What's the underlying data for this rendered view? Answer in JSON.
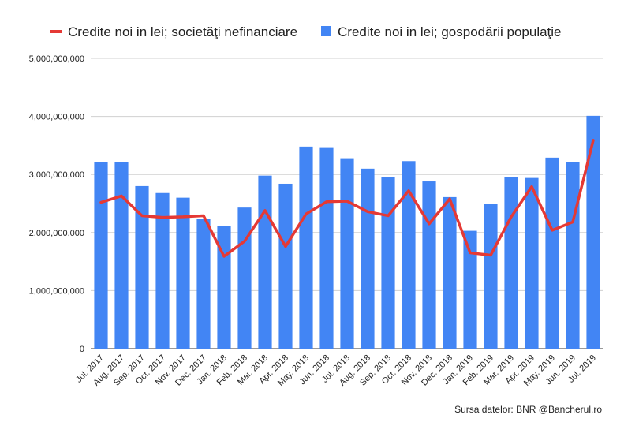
{
  "chart_data": {
    "type": "bar",
    "categories": [
      "Jul. 2017",
      "Aug. 2017",
      "Sep. 2017",
      "Oct. 2017",
      "Nov. 2017",
      "Dec. 2017",
      "Jan. 2018",
      "Feb. 2018",
      "Mar. 2018",
      "Apr. 2018",
      "May. 2018",
      "Jun. 2018",
      "Jul. 2018",
      "Aug. 2018",
      "Sep. 2018",
      "Oct. 2018",
      "Nov. 2018",
      "Dec. 2018",
      "Jan. 2019",
      "Feb. 2019",
      "Mar. 2019",
      "Apr. 2019",
      "May. 2019",
      "Jun. 2019",
      "Jul. 2019"
    ],
    "series": [
      {
        "name": "Credite noi in lei; gospodării populaţie",
        "kind": "bar",
        "color": "#4285f4",
        "values": [
          3210000000,
          3220000000,
          2800000000,
          2680000000,
          2600000000,
          2240000000,
          2110000000,
          2430000000,
          2980000000,
          2840000000,
          3480000000,
          3470000000,
          3280000000,
          3100000000,
          2960000000,
          3230000000,
          2880000000,
          2610000000,
          2030000000,
          2500000000,
          2960000000,
          2940000000,
          3290000000,
          3210000000,
          4010000000
        ]
      },
      {
        "name": "Credite noi in lei; societăţi nefinanciare",
        "kind": "line",
        "color": "#e53935",
        "values": [
          2520000000,
          2630000000,
          2290000000,
          2260000000,
          2270000000,
          2290000000,
          1590000000,
          1850000000,
          2380000000,
          1760000000,
          2320000000,
          2530000000,
          2540000000,
          2360000000,
          2290000000,
          2720000000,
          2150000000,
          2580000000,
          1650000000,
          1610000000,
          2270000000,
          2790000000,
          2040000000,
          2180000000,
          3590000000
        ]
      }
    ],
    "yticks": [
      "0",
      "1,000,000,000",
      "2,000,000,000",
      "3,000,000,000",
      "4,000,000,000",
      "5,000,000,000"
    ],
    "ylim": [
      0,
      5000000000
    ],
    "grid": true,
    "legend_position": "top"
  },
  "source_text": "Sursa datelor: BNR @Bancherul.ro"
}
